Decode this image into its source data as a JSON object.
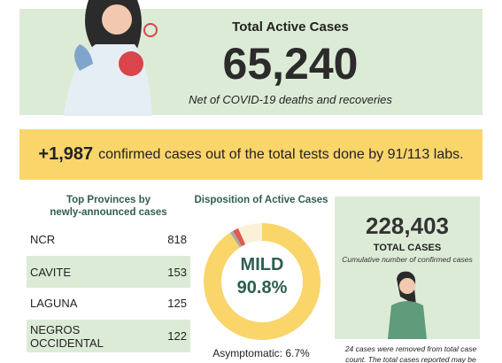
{
  "active_cases": {
    "title": "Total Active Cases",
    "value": "65,240",
    "note": "Net of COVID-19 deaths and recoveries"
  },
  "banner": {
    "value": "+1,987",
    "text": "confirmed cases out of the total tests done by 91/113 labs."
  },
  "provinces": {
    "title": [
      "Top Provinces by",
      "newly-announced cases"
    ],
    "rows": [
      [
        "NCR",
        "818"
      ],
      [
        "CAVITE",
        "153"
      ],
      [
        "LAGUNA",
        "125"
      ],
      [
        "NEGROS OCCIDENTAL",
        "122"
      ]
    ]
  },
  "disposition": {
    "title": "Disposition of Active Cases",
    "segments": [
      {
        "name": "MILD",
        "value": 90.8,
        "label": "90.8%",
        "color": "#f9d56a"
      },
      {
        "value": 0.9,
        "color": "#a9a9a9"
      },
      {
        "value": 1.6,
        "color": "#e05a4f"
      },
      {
        "name": "Asymptomatic",
        "value": 6.7,
        "label": "6.7%",
        "color": "#fbf1d6"
      }
    ]
  },
  "total_cases": {
    "value": "228,403",
    "title": "TOTAL CASES",
    "note": "Cumulative number of confirmed cases",
    "footnote": [
      "24 cases were removed from total case",
      "count. The total cases reported may be"
    ]
  }
}
